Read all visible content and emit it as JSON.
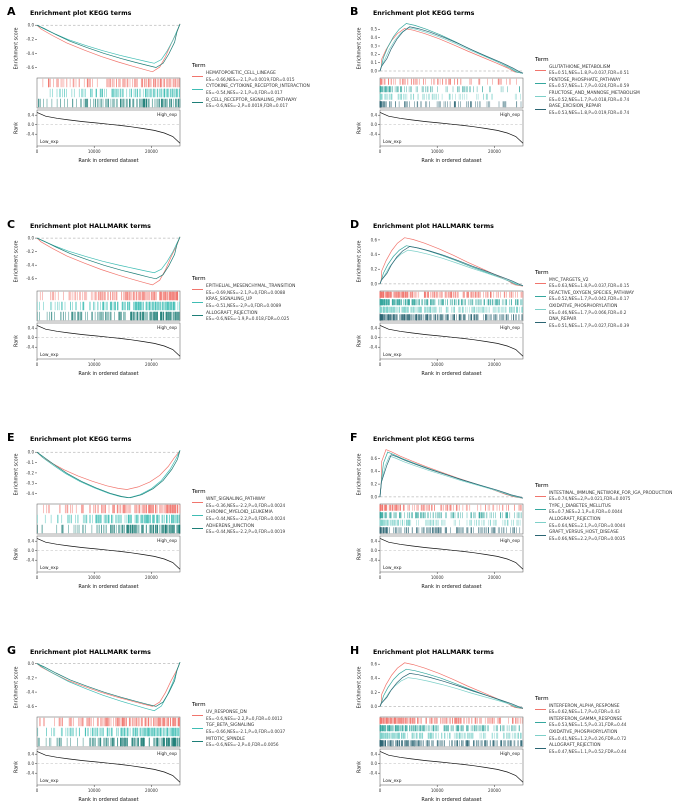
{
  "figure": {
    "background": "#ffffff",
    "legend_title": "Term",
    "x_axis_label": "Rank in ordered dataset",
    "x_ticks": [
      "0",
      "10000",
      "20000"
    ],
    "x_tick_values": [
      0,
      10000,
      20000
    ],
    "x_max": 25000,
    "es_axis_label": "Enrichment score",
    "rank_axis_label": "Rank",
    "low_group_label": "Low_exp",
    "high_group_label": "High_exp",
    "rank_ticks": [
      0.4,
      0,
      -0.4
    ],
    "rank_ylim": [
      -0.9,
      0.62
    ],
    "rank_curve": [
      [
        0,
        0.52
      ],
      [
        0.06,
        0.36
      ],
      [
        0.14,
        0.27
      ],
      [
        0.22,
        0.2
      ],
      [
        0.32,
        0.13
      ],
      [
        0.42,
        0.07
      ],
      [
        0.5,
        0.02
      ],
      [
        0.58,
        -0.03
      ],
      [
        0.66,
        -0.09
      ],
      [
        0.74,
        -0.16
      ],
      [
        0.82,
        -0.24
      ],
      [
        0.89,
        -0.35
      ],
      [
        0.95,
        -0.5
      ],
      [
        1,
        -0.78
      ]
    ],
    "curve_shapes": {
      "neg_late": [
        [
          0,
          0
        ],
        [
          0.04,
          0.08
        ],
        [
          0.12,
          0.22
        ],
        [
          0.22,
          0.38
        ],
        [
          0.34,
          0.53
        ],
        [
          0.46,
          0.67
        ],
        [
          0.58,
          0.79
        ],
        [
          0.68,
          0.88
        ],
        [
          0.76,
          0.95
        ],
        [
          0.82,
          1
        ],
        [
          0.87,
          0.9
        ],
        [
          0.91,
          0.68
        ],
        [
          0.95,
          0.4
        ],
        [
          0.98,
          0.14
        ],
        [
          1,
          -0.03
        ]
      ],
      "neg_mid": [
        [
          0,
          0
        ],
        [
          0.05,
          0.14
        ],
        [
          0.12,
          0.3
        ],
        [
          0.2,
          0.47
        ],
        [
          0.3,
          0.64
        ],
        [
          0.4,
          0.78
        ],
        [
          0.5,
          0.9
        ],
        [
          0.58,
          0.97
        ],
        [
          0.64,
          1
        ],
        [
          0.72,
          0.93
        ],
        [
          0.8,
          0.8
        ],
        [
          0.87,
          0.62
        ],
        [
          0.93,
          0.38
        ],
        [
          0.97,
          0.16
        ],
        [
          1,
          -0.04
        ]
      ],
      "pos_early": [
        [
          0,
          0
        ],
        [
          0.01,
          0.1
        ],
        [
          0.03,
          0.28
        ],
        [
          0.06,
          0.5
        ],
        [
          0.1,
          0.72
        ],
        [
          0.14,
          0.88
        ],
        [
          0.19,
          1
        ],
        [
          0.25,
          0.96
        ],
        [
          0.33,
          0.88
        ],
        [
          0.43,
          0.76
        ],
        [
          0.53,
          0.62
        ],
        [
          0.63,
          0.47
        ],
        [
          0.73,
          0.33
        ],
        [
          0.83,
          0.19
        ],
        [
          0.91,
          0.07
        ],
        [
          0.96,
          -0.02
        ],
        [
          1,
          -0.05
        ]
      ],
      "pos_very_early": [
        [
          0,
          0
        ],
        [
          0.01,
          0.35
        ],
        [
          0.03,
          0.75
        ],
        [
          0.06,
          1
        ],
        [
          0.1,
          0.95
        ],
        [
          0.16,
          0.86
        ],
        [
          0.24,
          0.76
        ],
        [
          0.34,
          0.64
        ],
        [
          0.45,
          0.52
        ],
        [
          0.56,
          0.4
        ],
        [
          0.68,
          0.28
        ],
        [
          0.8,
          0.16
        ],
        [
          0.9,
          0.05
        ],
        [
          0.96,
          0
        ],
        [
          1,
          -0.03
        ]
      ]
    }
  },
  "chart_data": [
    {
      "id": "A",
      "type": "line",
      "title": "Enrichment plot KEGG terms",
      "shape": "neg_late",
      "es_ylim": [
        -0.72,
        0.06
      ],
      "es_ticks": [
        0,
        -0.2,
        -0.4,
        -0.6
      ],
      "hits": {
        "side": "right",
        "count": 120
      },
      "series": [
        {
          "name": "HEMATOPOIETIC_CELL_LINEAGE",
          "stats": "ES=-0.66,NES=-2.1,P=0.0019,FDR=0.015",
          "es": -0.66,
          "color": "#F1756D"
        },
        {
          "name": "CYTOKINE_CYTOKINE_RECEPTOR_INTERACTION",
          "stats": "ES=-0.54,NES=-2.1,P=0,FDR=0.017",
          "es": -0.54,
          "color": "#3FBDB4"
        },
        {
          "name": "B_CELL_RECEPTOR_SIGNALING_PATHWAY",
          "stats": "ES=-0.6,NES=-2,P=0.0019,FDR=0.017",
          "es": -0.6,
          "color": "#1D7E77"
        }
      ]
    },
    {
      "id": "B",
      "type": "line",
      "title": "Enrichment plot KEGG terms",
      "shape": "pos_early",
      "es_ylim": [
        -0.06,
        0.6
      ],
      "es_ticks": [
        0.5,
        0.4,
        0.3,
        0.2,
        0.1,
        0
      ],
      "hits": {
        "side": "left",
        "count": 80
      },
      "series": [
        {
          "name": "GLUTATHIONE_METABOLISM",
          "stats": "ES=0.51,NES=1.8,P=0.037,FDR=0.51",
          "es": 0.51,
          "color": "#F1756D"
        },
        {
          "name": "PENTOSE_PHOSPHATE_PATHWAY",
          "stats": "ES=0.57,NES=1.7,P=0.024,FDR=0.59",
          "es": 0.57,
          "color": "#35A79E"
        },
        {
          "name": "FRUCTOSE_AND_MANNOSE_METABOLISM",
          "stats": "ES=0.52,NES=1.7,P=0.018,FDR=0.74",
          "es": 0.52,
          "color": "#7ED0C9"
        },
        {
          "name": "BASE_EXCISION_REPAIR",
          "stats": "ES=0.53,NES=1.8,P=0.019,FDR=0.74",
          "es": 0.53,
          "color": "#2B6573"
        }
      ]
    },
    {
      "id": "C",
      "type": "line",
      "title": "Enrichment plot HALLMARK terms",
      "shape": "neg_late",
      "es_ylim": [
        -0.75,
        0.06
      ],
      "es_ticks": [
        0,
        -0.2,
        -0.4,
        -0.6
      ],
      "hits": {
        "side": "right",
        "count": 160
      },
      "series": [
        {
          "name": "EPITHELIAL_MESENCHYMAL_TRANSITION",
          "stats": "ES=-0.69,NES=-2.1,P=0,FDR=0.0088",
          "es": -0.69,
          "color": "#F1756D"
        },
        {
          "name": "KRAS_SIGNALING_UP",
          "stats": "ES=-0.51,NES=-2,P=0,FDR=0.0089",
          "es": -0.51,
          "color": "#3FBDB4"
        },
        {
          "name": "ALLOGRAFT_REJECTION",
          "stats": "ES=-0.6,NES=-1.9,P=0.018,FDR=0.025",
          "es": -0.6,
          "color": "#1D7E77"
        }
      ]
    },
    {
      "id": "D",
      "type": "line",
      "title": "Enrichment plot HALLMARK terms",
      "shape": "pos_early",
      "es_ylim": [
        -0.07,
        0.68
      ],
      "es_ticks": [
        0.6,
        0.4,
        0.2,
        0
      ],
      "hits": {
        "side": "left",
        "count": 220
      },
      "series": [
        {
          "name": "MYC_TARGETS_V2",
          "stats": "ES=0.63,NES=1.8,P=0.037,FDR=0.15",
          "es": 0.63,
          "color": "#F1756D"
        },
        {
          "name": "REACTIVE_OXYGEN_SPECIES_PATHWAY",
          "stats": "ES=0.52,NES=1.7,P=0.042,FDR=0.17",
          "es": 0.52,
          "color": "#35A79E"
        },
        {
          "name": "OXIDATIVE_PHOSPHORYLATION",
          "stats": "ES=0.46,NES=1.7,P=0.066,FDR=0.2",
          "es": 0.46,
          "color": "#7ED0C9"
        },
        {
          "name": "DNA_REPAIR",
          "stats": "ES=0.51,NES=1.7,P=0.027,FDR=0.39",
          "es": 0.51,
          "color": "#2B6573"
        }
      ]
    },
    {
      "id": "E",
      "type": "line",
      "title": "Enrichment plot KEGG terms",
      "shape": "neg_mid",
      "es_ylim": [
        -0.48,
        0.05
      ],
      "es_ticks": [
        0,
        -0.1,
        -0.2,
        -0.3,
        -0.4
      ],
      "hits": {
        "side": "right",
        "count": 140
      },
      "series": [
        {
          "name": "WNT_SIGNALING_PATHWAY",
          "stats": "ES=-0.36,NES=-2.2,P=0,FDR=0.0024",
          "es": -0.36,
          "color": "#F1756D"
        },
        {
          "name": "CHRONIC_MYELOID_LEUKEMIA",
          "stats": "ES=-0.44,NES=-2.2,P=0,FDR=0.0024",
          "es": -0.44,
          "color": "#3FBDB4"
        },
        {
          "name": "ADHERENS_JUNCTION",
          "stats": "ES=-0.44,NES=-2.2,P=0,FDR=0.0019",
          "es": -0.44,
          "color": "#1D7E77"
        }
      ]
    },
    {
      "id": "F",
      "type": "line",
      "title": "Enrichment plot KEGG terms",
      "shape": "pos_very_early",
      "es_ylim": [
        -0.08,
        0.78
      ],
      "es_ticks": [
        0.6,
        0.4,
        0.2,
        0
      ],
      "hits": {
        "side": "left",
        "count": 130
      },
      "series": [
        {
          "name": "INTESTINAL_IMMUNE_NETWORK_FOR_IGA_PRODUCTION",
          "stats": "ES=0.74,NES=2,P=0.021,FDR=0.0075",
          "es": 0.74,
          "color": "#F1756D"
        },
        {
          "name": "TYPE_I_DIABETES_MELLITUS",
          "stats": "ES=0.7,NES=2.1,P=0,FDR=0.0044",
          "es": 0.7,
          "color": "#35A79E"
        },
        {
          "name": "ALLOGRAFT_REJECTION",
          "stats": "ES=0.64,NES=2.1,P=0,FDR=0.0044",
          "es": 0.64,
          "color": "#7ED0C9"
        },
        {
          "name": "GRAFT_VERSUS_HOST_DISEASE",
          "stats": "ES=0.66,NES=2.2,P=0,FDR=0.0035",
          "es": 0.66,
          "color": "#2B6573"
        }
      ]
    },
    {
      "id": "G",
      "type": "line",
      "title": "Enrichment plot HALLMARK terms",
      "shape": "neg_late",
      "es_ylim": [
        -0.72,
        0.05
      ],
      "es_ticks": [
        0,
        -0.2,
        -0.4,
        -0.6
      ],
      "hits": {
        "side": "right",
        "count": 160
      },
      "series": [
        {
          "name": "UV_RESPONSE_DN",
          "stats": "ES=-0.6,NES=-2.2,P=0,FDR=0.0012",
          "es": -0.6,
          "color": "#F1756D"
        },
        {
          "name": "TGF_BETA_SIGNALING",
          "stats": "ES=-0.66,NES=-2.1,P=0,FDR=0.0037",
          "es": -0.66,
          "color": "#3FBDB4"
        },
        {
          "name": "MITOTIC_SPINDLE",
          "stats": "ES=-0.6,NES=-2,P=0,FDR=0.0056",
          "es": -0.6,
          "color": "#1D7E77"
        }
      ]
    },
    {
      "id": "H",
      "type": "line",
      "title": "Enrichment plot HALLMARK terms",
      "shape": "pos_early",
      "es_ylim": [
        -0.12,
        0.66
      ],
      "es_ticks": [
        0.6,
        0.4,
        0.2,
        0
      ],
      "hits": {
        "side": "left",
        "count": 200
      },
      "series": [
        {
          "name": "INTERFERON_ALPHA_RESPONSE",
          "stats": "ES=0.62,NES=1.7,P=0,FDR=0.43",
          "es": 0.62,
          "color": "#F1756D"
        },
        {
          "name": "INTERFERON_GAMMA_RESPONSE",
          "stats": "ES=0.53,NES=1.5,P=0.31,FDR=0.44",
          "es": 0.53,
          "color": "#35A79E"
        },
        {
          "name": "OXIDATIVE_PHOSPHORYLATION",
          "stats": "ES=0.41,NES=1.2,P=0.26,FDR=0.72",
          "es": 0.41,
          "color": "#7ED0C9"
        },
        {
          "name": "ALLOGRAFT_REJECTION",
          "stats": "ES=0.47,NES=1.1,P=0.52,FDR=0.44",
          "es": 0.47,
          "color": "#2B6573"
        }
      ]
    }
  ]
}
